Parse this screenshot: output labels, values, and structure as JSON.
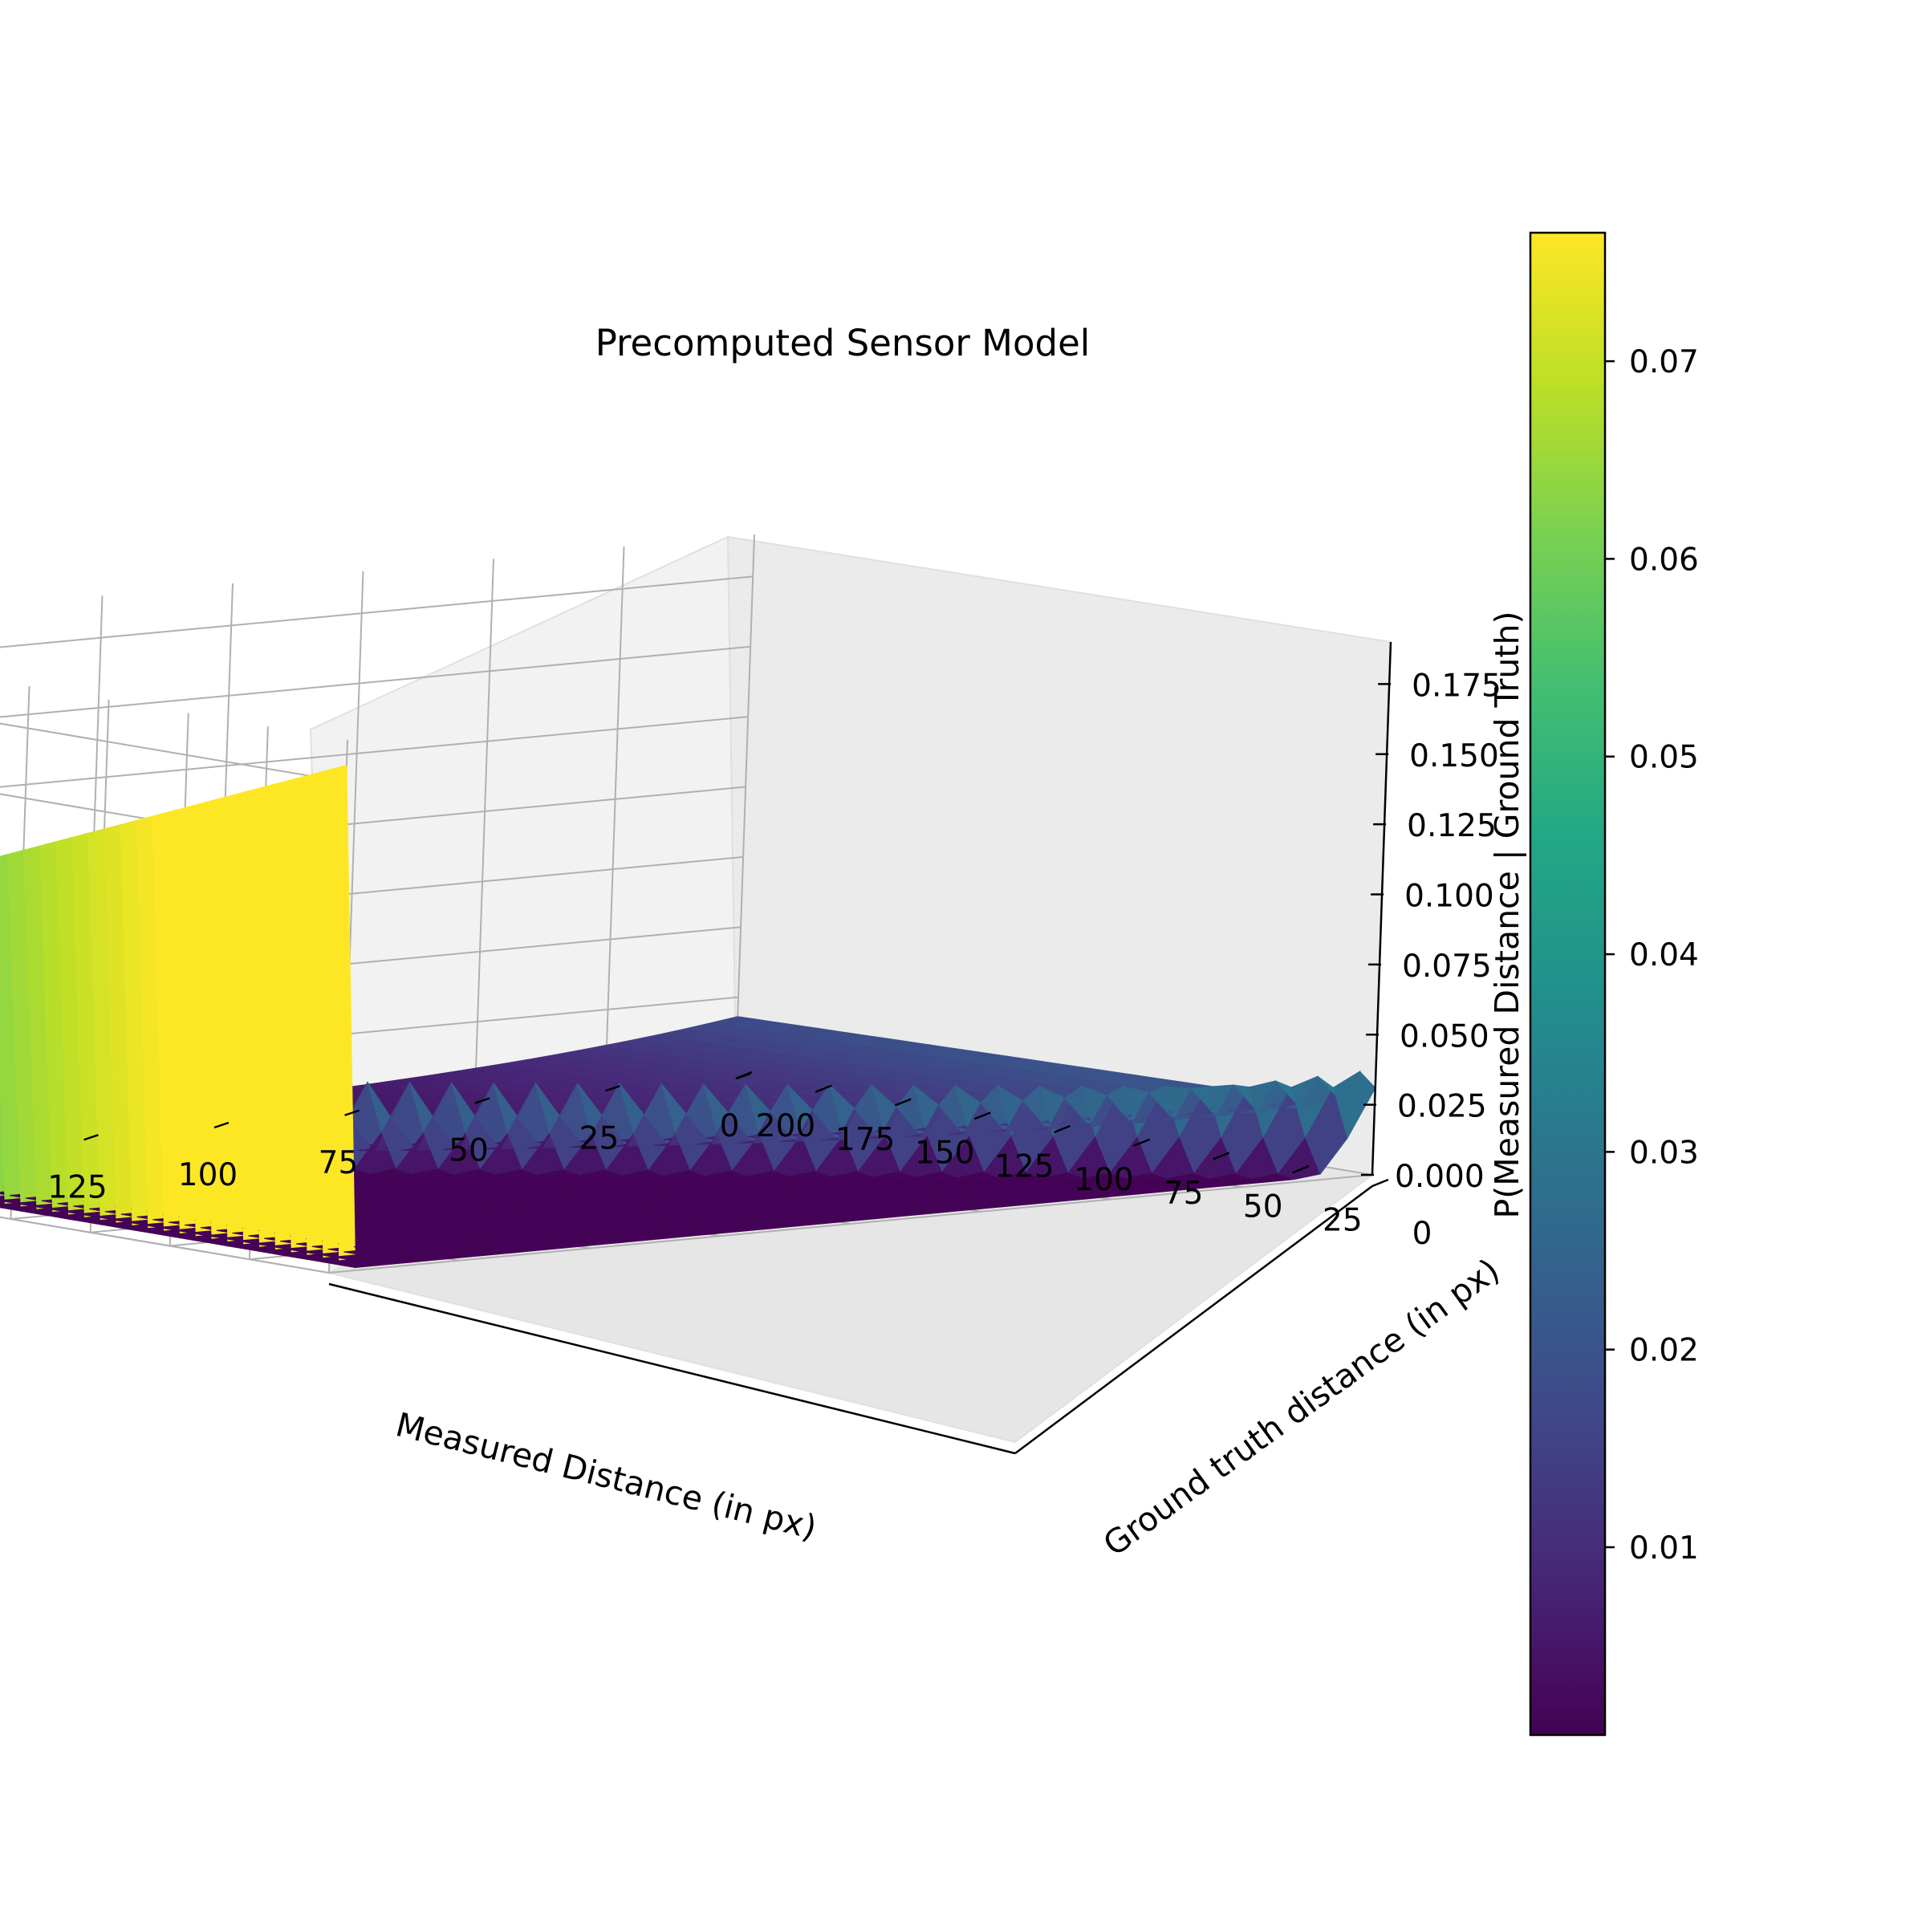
{
  "chart_data": {
    "type": "surface3d",
    "title": "Precomputed Sensor Model",
    "xlabel": "Measured Distance (in px)",
    "ylabel": "Ground truth distance (in px)",
    "zlabel": "P(Measured Distance | Ground Truth)",
    "x_ticks": [
      "200",
      "175",
      "150",
      "125",
      "100",
      "75",
      "50",
      "25",
      "0"
    ],
    "y_ticks": [
      "0",
      "25",
      "50",
      "75",
      "100",
      "125",
      "150",
      "175",
      "200"
    ],
    "z_ticks": [
      "0.000",
      "0.025",
      "0.050",
      "0.075",
      "0.100",
      "0.125",
      "0.150",
      "0.175"
    ],
    "xlim": [
      0,
      200
    ],
    "ylim": [
      0,
      200
    ],
    "zlim": [
      0,
      0.19
    ],
    "colormap": "viridis",
    "colorbar": {
      "ticks": [
        "0.01",
        "0.02",
        "0.03",
        "0.04",
        "0.05",
        "0.06",
        "0.07"
      ],
      "range": [
        0.0005,
        0.0765
      ]
    },
    "features": {
      "short_reading_plateau": 0.022,
      "max_range_spike": 0.18,
      "diagonal_hit_peak": 0.03,
      "floor": 0.001
    },
    "colors": {
      "viridis_low": "#440154",
      "viridis_mid": "#21918c",
      "viridis_high": "#fde725",
      "pane": "#f2f2f2",
      "grid": "#b0b0b0"
    }
  }
}
